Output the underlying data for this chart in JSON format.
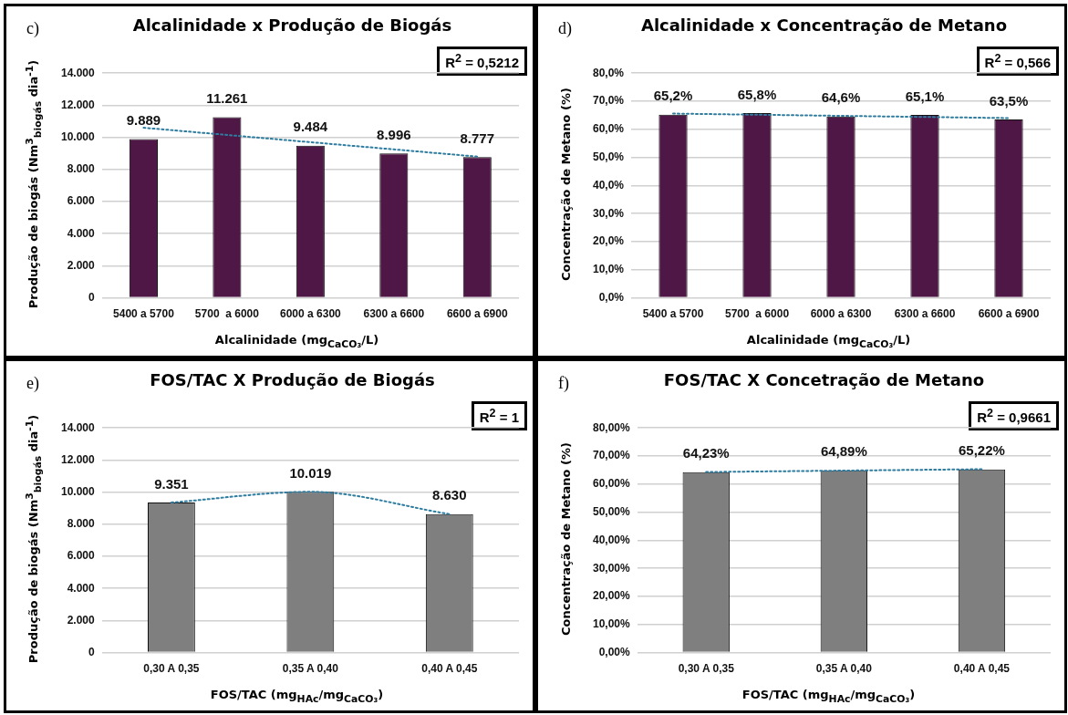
{
  "chart_data": [
    {
      "type": "bar",
      "title": "Alcalinidade x Produção de Biogás",
      "xlabel": "Alcalinidade (mg$_{CaCO₃}$/L)",
      "ylabel": "Produção de biogás (Nm$^{3}$$_{biogás}$ dia$^{-1}$)",
      "annotations": [
        "c)",
        "R$^{2}$ = 0,5212"
      ],
      "categories": [
        "5400 a 5700",
        "5700  a 6000",
        "6000 a 6300",
        "6300 a 6600",
        "6600 a 6900"
      ],
      "series": [
        {
          "color": "#4f1746",
          "values": [
            9889,
            11261,
            9484,
            8996,
            8777
          ],
          "value_labels": [
            "9.889",
            "11.261",
            "9.484",
            "8.996",
            "8.777"
          ]
        },
        {
          "type": "line",
          "color": "#2e7ca0",
          "line_style": "dotted",
          "marker": "none",
          "values": [
            10600,
            10150,
            9700,
            9250,
            8800
          ]
        }
      ],
      "ylim": [
        0,
        14000
      ],
      "yticks": [
        0,
        {
          "value": 2000,
          "label": "2.000"
        },
        {
          "value": 4000,
          "label": "4.000"
        },
        {
          "value": 6000,
          "label": "6.000"
        },
        {
          "value": 8000,
          "label": "8.000"
        },
        {
          "value": 10000,
          "label": "10.000"
        },
        {
          "value": 12000,
          "label": "12.000"
        },
        {
          "value": 14000,
          "label": "14.000"
        }
      ],
      "grid": "y",
      "legend": false
    },
    {
      "type": "bar",
      "title": "Alcalinidade x Concentração de Metano",
      "xlabel": "Alcalinidade (mg$_{CaCO₃}$/L)",
      "ylabel": "Concentração de Metano (%)",
      "annotations": [
        "d)",
        "R$^{2}$ = 0,566"
      ],
      "categories": [
        "5400 a 5700",
        "5700  a 6000",
        "6000 a 6300",
        "6300 a 6600",
        "6600 a 6900"
      ],
      "series": [
        {
          "color": "#4f1746",
          "values": [
            65.2,
            65.8,
            64.6,
            65.1,
            63.5
          ],
          "value_labels": [
            "65,2%",
            "65,8%",
            "64,6%",
            "65,1%",
            "63,5%"
          ]
        },
        {
          "type": "line",
          "color": "#2e7ca0",
          "line_style": "dotted",
          "marker": "none",
          "values": [
            65.6,
            65.2,
            64.8,
            64.4,
            64.0
          ]
        }
      ],
      "ylim": [
        0,
        80
      ],
      "yticks": [
        {
          "value": 0,
          "label": "0,0%"
        },
        {
          "value": 10,
          "label": "10,0%"
        },
        {
          "value": 20,
          "label": "20,0%"
        },
        {
          "value": 30,
          "label": "30,0%"
        },
        {
          "value": 40,
          "label": "40,0%"
        },
        {
          "value": 50,
          "label": "50,0%"
        },
        {
          "value": 60,
          "label": "60,0%"
        },
        {
          "value": 70,
          "label": "70,0%"
        },
        {
          "value": 80,
          "label": "80,0%"
        }
      ],
      "grid": "y",
      "legend": false
    },
    {
      "type": "bar",
      "title": "FOS/TAC X Produção de Biogás",
      "xlabel": "FOS/TAC (mg$_{HAc}$/mg$_{CaCO₃}$)",
      "ylabel": "Produção de biogás (Nm$^{3}$$_{biogás}$ dia$^{-1}$)",
      "annotations": [
        "e)",
        "R$^{2}$ = 1"
      ],
      "categories": [
        "0,30 A 0,35",
        "0,35 A 0,40",
        "0,40 A 0,45"
      ],
      "series": [
        {
          "color": "#7f7f7f",
          "values": [
            9351,
            10019,
            8630
          ],
          "value_labels": [
            "9.351",
            "10.019",
            "8.630"
          ]
        },
        {
          "type": "line",
          "color": "#2e7ca0",
          "line_style": "dotted",
          "marker": "none",
          "values": [
            9351,
            10019,
            8630
          ]
        }
      ],
      "ylim": [
        0,
        14000
      ],
      "yticks": [
        0,
        {
          "value": 2000,
          "label": "2.000"
        },
        {
          "value": 4000,
          "label": "4.000"
        },
        {
          "value": 6000,
          "label": "6.000"
        },
        {
          "value": 8000,
          "label": "8.000"
        },
        {
          "value": 10000,
          "label": "10.000"
        },
        {
          "value": 12000,
          "label": "12.000"
        },
        {
          "value": 14000,
          "label": "14.000"
        }
      ],
      "grid": "y",
      "legend": false
    },
    {
      "type": "bar",
      "title": "FOS/TAC X Concetração de Metano",
      "xlabel": "FOS/TAC (mg$_{HAc}$/mg$_{CaCO₃}$)",
      "ylabel": "Concentração de Metano (%)",
      "annotations": [
        "f)",
        "R$^{2}$ = 0,9661"
      ],
      "categories": [
        "0,30 A 0,35",
        "0,35 A 0,40",
        "0,40 A 0,45"
      ],
      "series": [
        {
          "color": "#7f7f7f",
          "values": [
            64.23,
            64.89,
            65.22
          ],
          "value_labels": [
            "64,23%",
            "64,89%",
            "65,22%"
          ]
        },
        {
          "type": "line",
          "color": "#2e7ca0",
          "line_style": "dotted",
          "marker": "none",
          "values": [
            64.3,
            64.8,
            65.3
          ]
        }
      ],
      "ylim": [
        0,
        80
      ],
      "yticks": [
        {
          "value": 0,
          "label": "0,00%"
        },
        {
          "value": 10,
          "label": "10,00%"
        },
        {
          "value": 20,
          "label": "20,00%"
        },
        {
          "value": 30,
          "label": "30,00%"
        },
        {
          "value": 40,
          "label": "40,00%"
        },
        {
          "value": 50,
          "label": "50,00%"
        },
        {
          "value": 60,
          "label": "60,00%"
        },
        {
          "value": 70,
          "label": "70,00%"
        },
        {
          "value": 80,
          "label": "80,00%"
        }
      ],
      "grid": "y",
      "legend": false
    }
  ]
}
